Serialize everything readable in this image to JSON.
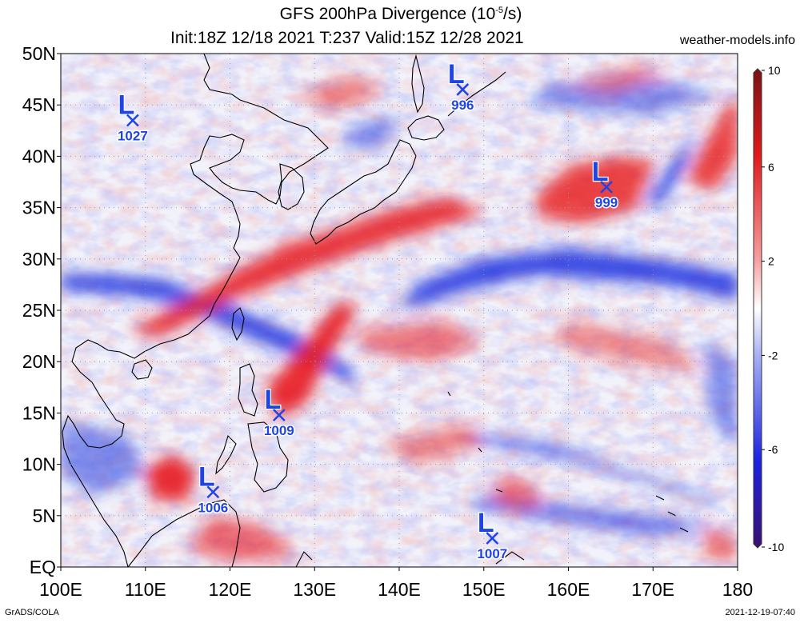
{
  "title": {
    "line1_prefix": "GFS 200hPa Divergence (10",
    "line1_exp": "-5",
    "line1_suffix": "/s)",
    "line2": "Init:18Z 12/18 2021 T:237 Valid:15Z 12/28 2021"
  },
  "site": "weather-models.info",
  "footer": {
    "left": "GrADS/COLA",
    "right": "2021-12-19-07:40"
  },
  "map": {
    "lon_labels": [
      "100E",
      "110E",
      "120E",
      "130E",
      "140E",
      "150E",
      "160E",
      "170E",
      "180"
    ],
    "lat_labels": [
      "EQ",
      "5N",
      "10N",
      "15N",
      "20N",
      "25N",
      "30N",
      "35N",
      "40N",
      "45N",
      "50N"
    ]
  },
  "lows": [
    {
      "letter": "L",
      "pressure": "1027",
      "lon": 108.5,
      "lat": 43.5
    },
    {
      "letter": "L",
      "pressure": "996",
      "lon": 147.5,
      "lat": 46.5
    },
    {
      "letter": "L",
      "pressure": "999",
      "lon": 164.5,
      "lat": 37.0
    },
    {
      "letter": "L",
      "pressure": "1009",
      "lon": 125.8,
      "lat": 14.8
    },
    {
      "letter": "L",
      "pressure": "1006",
      "lon": 118.0,
      "lat": 7.3
    },
    {
      "letter": "L",
      "pressure": "1007",
      "lon": 151.0,
      "lat": 2.8
    }
  ],
  "colorbar": {
    "labels": [
      "10",
      "6",
      "2",
      "-2",
      "-6",
      "-10"
    ],
    "min": -10,
    "max": 10
  },
  "colors": {
    "red": "#e8191c",
    "blue": "#1a2fe0",
    "low_marker": "#1f44e6",
    "coast": "#000000"
  }
}
